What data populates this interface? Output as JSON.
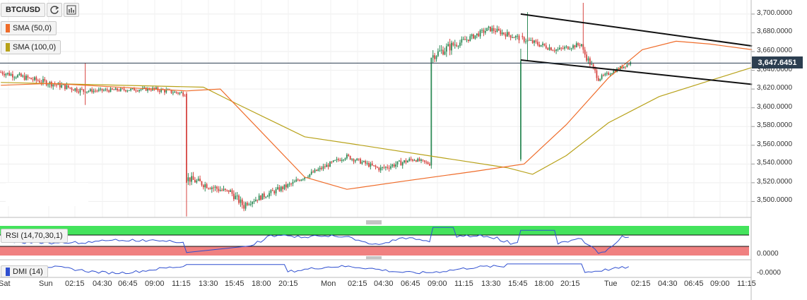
{
  "toolbar": {
    "symbol": "BTC/USD",
    "refresh_icon": "refresh-icon",
    "chart_icon": "bar-chart-icon"
  },
  "indicators": [
    {
      "label": "SMA (50,0)",
      "color": "#ef6c2a"
    },
    {
      "label": "SMA (100,0)",
      "color": "#b8a21a"
    }
  ],
  "price_axis": {
    "ticks": [
      "3,700.0000",
      "3,680.0000",
      "3,660.0000",
      "3,640.0000",
      "3,620.0000",
      "3,600.0000",
      "3,580.0000",
      "3,560.0000",
      "3,540.0000",
      "3,520.0000",
      "3,500.0000"
    ],
    "current_price": "3,647.6451"
  },
  "time_axis": {
    "labels": [
      "Sat",
      "Sun",
      "02:15",
      "04:30",
      "06:45",
      "09:00",
      "11:15",
      "13:30",
      "15:45",
      "18:00",
      "20:15",
      "Mon",
      "02:15",
      "04:30",
      "06:45",
      "09:00",
      "11:15",
      "13:30",
      "15:45",
      "18:00",
      "20:15",
      "Tue",
      "02:15",
      "04:30",
      "06:45",
      "09:00",
      "11:15"
    ]
  },
  "rsi_panel": {
    "label": "RSI (14,70,30,1)",
    "value_label": "0.0000"
  },
  "dmi_panel": {
    "label": "DMI (14)",
    "value_label": "-0.0000"
  },
  "colors": {
    "up": "#2e8b57",
    "down": "#d64541",
    "sma50": "#ef6c2a",
    "sma100": "#b8a21a",
    "rsi_line": "#2f4fd0",
    "rsi_over": "#44e35c",
    "rsi_under": "#f08080"
  },
  "chart_data": {
    "type": "candlestick",
    "pair": "BTC/USD",
    "ylim": [
      3483,
      3712
    ],
    "candles_per_day": 96,
    "sma50": [
      [
        0,
        3624
      ],
      [
        30,
        3626
      ],
      [
        110,
        3618
      ],
      [
        130,
        3620
      ],
      [
        180,
        3526
      ],
      [
        205,
        3513
      ],
      [
        240,
        3522
      ],
      [
        280,
        3532
      ],
      [
        310,
        3540
      ],
      [
        335,
        3582
      ],
      [
        360,
        3632
      ],
      [
        380,
        3662
      ],
      [
        400,
        3671
      ],
      [
        420,
        3668
      ],
      [
        445,
        3662
      ]
    ],
    "sma100": [
      [
        0,
        3627
      ],
      [
        120,
        3622
      ],
      [
        140,
        3604
      ],
      [
        180,
        3569
      ],
      [
        210,
        3561
      ],
      [
        260,
        3547
      ],
      [
        300,
        3536
      ],
      [
        315,
        3529
      ],
      [
        335,
        3549
      ],
      [
        360,
        3584
      ],
      [
        390,
        3612
      ],
      [
        420,
        3629
      ],
      [
        445,
        3643
      ]
    ],
    "channel_upper": [
      [
        308,
        3700
      ],
      [
        445,
        3666
      ]
    ],
    "channel_lower": [
      [
        308,
        3651
      ],
      [
        445,
        3625
      ]
    ],
    "current_price": 3647.6451,
    "segments": [
      {
        "n": 50,
        "start": 3638,
        "end": 3618,
        "amp": 6
      },
      {
        "n": 40,
        "start": 3618,
        "end": 3620,
        "amp": 4
      },
      {
        "n": 20,
        "start": 3620,
        "end": 3615,
        "amp": 5
      },
      {
        "n": 25,
        "start": 3525,
        "end": 3510,
        "amp": 8
      },
      {
        "n": 10,
        "start": 3512,
        "end": 3495,
        "amp": 8
      },
      {
        "n": 30,
        "start": 3498,
        "end": 3520,
        "amp": 6
      },
      {
        "n": 30,
        "start": 3522,
        "end": 3548,
        "amp": 5
      },
      {
        "n": 20,
        "start": 3548,
        "end": 3535,
        "amp": 5
      },
      {
        "n": 20,
        "start": 3535,
        "end": 3545,
        "amp": 6
      },
      {
        "n": 10,
        "start": 3545,
        "end": 3540,
        "amp": 4
      },
      {
        "n": 15,
        "start": 3655,
        "end": 3668,
        "amp": 10
      },
      {
        "n": 20,
        "start": 3668,
        "end": 3684,
        "amp": 6
      },
      {
        "n": 40,
        "start": 3684,
        "end": 3662,
        "amp": 6
      },
      {
        "n": 15,
        "start": 3662,
        "end": 3668,
        "amp": 5
      },
      {
        "n": 10,
        "start": 3660,
        "end": 3632,
        "amp": 7
      },
      {
        "n": 19,
        "start": 3632,
        "end": 3648,
        "amp": 4
      }
    ],
    "spikes": [
      {
        "i": 50,
        "type": "wick",
        "hi": 3648,
        "lo": 3603
      },
      {
        "i": 110,
        "type": "drop",
        "o": 3615,
        "c": 3520,
        "lo": 3484
      },
      {
        "i": 255,
        "type": "wick",
        "hi": 3568,
        "lo": 3535
      },
      {
        "i": 308,
        "type": "pump",
        "o": 3545,
        "c": 3650,
        "hi": 3663
      },
      {
        "i": 312,
        "type": "wick",
        "hi": 3702,
        "lo": 3650
      },
      {
        "i": 345,
        "type": "wick",
        "hi": 3712,
        "lo": 3658
      }
    ]
  }
}
